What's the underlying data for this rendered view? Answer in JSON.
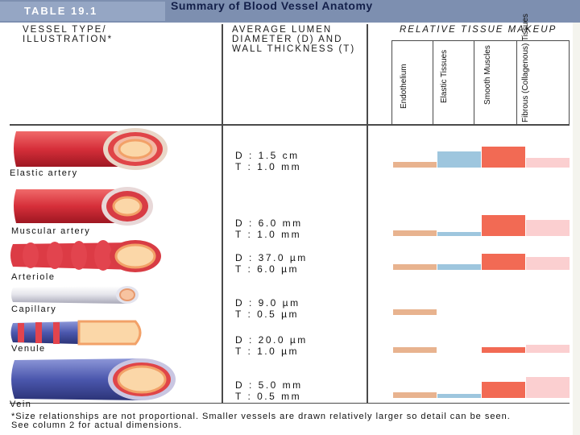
{
  "table_label": "TABLE 19.1",
  "title": "Summary of Blood Vessel Anatomy",
  "headers": {
    "col1": "VESSEL TYPE/ ILLUSTRATION*",
    "col2": "AVERAGE LUMEN DIAMETER (D) AND WALL THICKNESS (T)",
    "col3": "RELATIVE TISSUE MAKEUP"
  },
  "tissues": [
    "Endothelium",
    "Elastic Tissues",
    "Smooth Muscles",
    "Fibrous (Collagenous) Tissues"
  ],
  "colors": {
    "endothelium": "#e8b38f",
    "elastic": "#9ec6de",
    "smooth": "#f26a54",
    "fibrous": "#fbcfd0"
  },
  "vessels": [
    {
      "name": "Elastic artery",
      "diameter": "D : 1.5 cm",
      "thickness": "T : 1.0 mm",
      "makeup": {
        "endothelium": 0.25,
        "elastic": 0.75,
        "smooth": 1.0,
        "fibrous": 0.45
      }
    },
    {
      "name": "Muscular artery",
      "diameter": "D : 6.0 mm",
      "thickness": "T : 1.0 mm",
      "makeup": {
        "endothelium": 0.25,
        "elastic": 0.2,
        "smooth": 1.0,
        "fibrous": 0.75
      }
    },
    {
      "name": "Arteriole",
      "diameter": "D : 37.0 µm",
      "thickness": "T : 6.0 µm",
      "makeup": {
        "endothelium": 0.25,
        "elastic": 0.25,
        "smooth": 0.75,
        "fibrous": 0.6
      }
    },
    {
      "name": "Capillary",
      "diameter": "D : 9.0 µm",
      "thickness": "T : 0.5 µm",
      "makeup": {
        "endothelium": 0.25,
        "elastic": 0,
        "smooth": 0,
        "fibrous": 0
      }
    },
    {
      "name": "Venule",
      "diameter": "D : 20.0 µm",
      "thickness": "T : 1.0 µm",
      "makeup": {
        "endothelium": 0.25,
        "elastic": 0,
        "smooth": 0.25,
        "fibrous": 0.4
      }
    },
    {
      "name": "Vein",
      "diameter": "D : 5.0 mm",
      "thickness": "T : 0.5 mm",
      "makeup": {
        "endothelium": 0.25,
        "elastic": 0.2,
        "smooth": 0.75,
        "fibrous": 1.0
      }
    }
  ],
  "footnote": "*Size relationships are not proportional. Smaller vessels are drawn relatively larger so detail can be seen. See column 2 for actual dimensions."
}
